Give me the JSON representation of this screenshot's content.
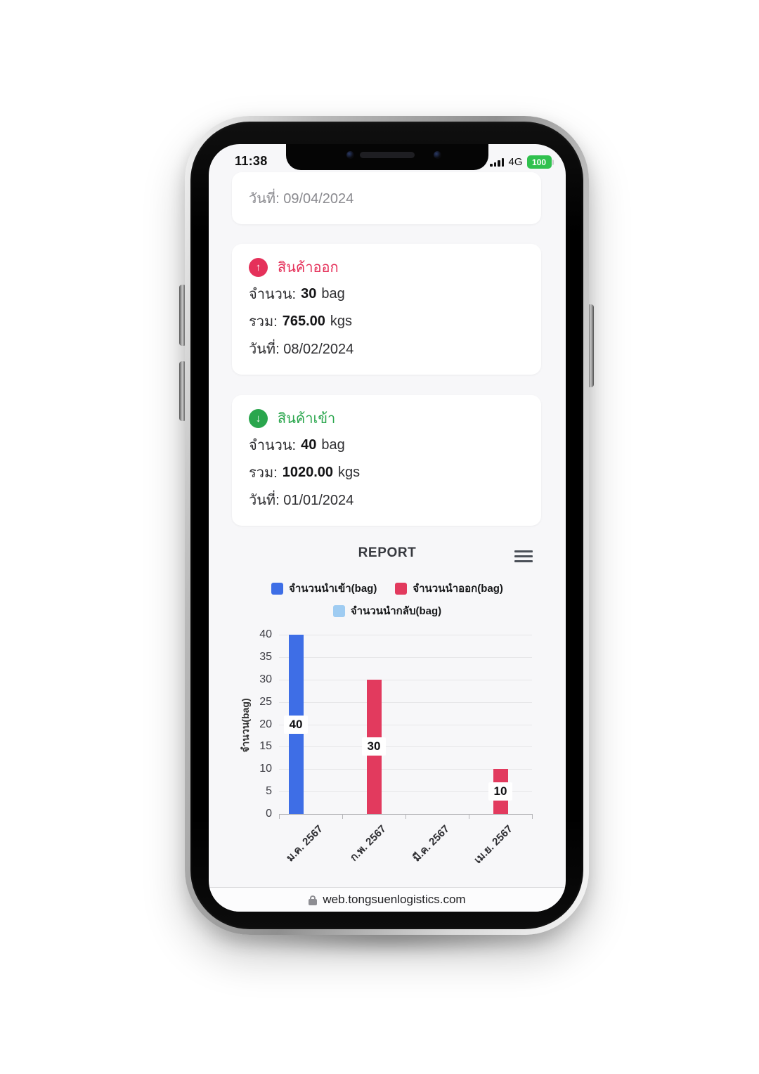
{
  "status_bar": {
    "time": "11:38",
    "network": "4G",
    "battery_percent": "100"
  },
  "cards": [
    {
      "date": "วันที่: 09/04/2024"
    },
    {
      "title": "สินค้าออก",
      "accent": "#e5315a",
      "arrow_glyph": "↑",
      "qty_label": "จำนวน:",
      "qty_value": "30",
      "qty_unit": "bag",
      "total_label": "รวม:",
      "total_value": "765.00",
      "total_unit": "kgs",
      "date": "วันที่: 08/02/2024"
    },
    {
      "title": "สินค้าเข้า",
      "accent": "#2aa64d",
      "arrow_glyph": "↓",
      "qty_label": "จำนวน:",
      "qty_value": "40",
      "qty_unit": "bag",
      "total_label": "รวม:",
      "total_value": "1020.00",
      "total_unit": "kgs",
      "date": "วันที่: 01/01/2024"
    }
  ],
  "report": {
    "title": "REPORT"
  },
  "chart_data": {
    "type": "bar",
    "categories": [
      "ม.ค. 2567",
      "ก.พ. 2567",
      "มี.ค. 2567",
      "เม.ย. 2567"
    ],
    "series": [
      {
        "name": "จำนวนนำเข้า(bag)",
        "color": "#3e6ee6",
        "values": [
          40,
          0,
          0,
          0
        ]
      },
      {
        "name": "จำนวนนำออก(bag)",
        "color": "#e23a5e",
        "values": [
          0,
          30,
          0,
          10
        ]
      },
      {
        "name": "จำนวนนำกลับ(bag)",
        "color": "#9fccf2",
        "values": [
          0,
          0,
          0,
          0
        ]
      }
    ],
    "ylabel": "จำนวน(bag)",
    "ylim": [
      0,
      40
    ],
    "ytick_step": 5,
    "grid": true,
    "legend_position": "top",
    "bar_value_labels": true
  },
  "url_bar": {
    "url": "web.tongsuenlogistics.com"
  }
}
